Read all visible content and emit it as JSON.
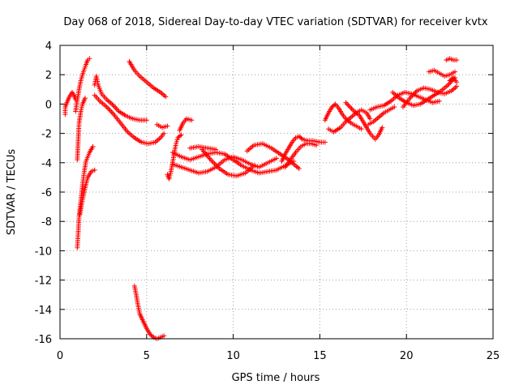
{
  "chart_data": {
    "type": "scatter",
    "title": "Day 068 of 2018, Sidereal Day-to-day VTEC variation (SDTVAR) for receiver kvtx",
    "xlabel": "GPS time / hours",
    "ylabel": "SDTVAR / TECUs",
    "xlim": [
      0,
      25
    ],
    "ylim": [
      -16,
      4
    ],
    "xticks": [
      "0",
      "5",
      "10",
      "15",
      "20",
      "25"
    ],
    "yticks": [
      "4",
      "2",
      "0",
      "-2",
      "-4",
      "-6",
      "-8",
      "-10",
      "-12",
      "-14",
      "-16"
    ],
    "grid": true,
    "marker": "plus",
    "color": "#ff0000",
    "series": [
      {
        "name": "sdtvar",
        "segments": [
          [
            [
              0.3,
              -0.7
            ],
            [
              0.3,
              -0.2
            ],
            [
              0.4,
              0.1
            ],
            [
              0.5,
              0.4
            ],
            [
              0.6,
              0.6
            ],
            [
              0.7,
              0.8
            ],
            [
              0.8,
              0.6
            ],
            [
              0.9,
              0.3
            ]
          ],
          [
            [
              0.9,
              -0.5
            ],
            [
              1.0,
              0.3
            ],
            [
              1.1,
              1.0
            ],
            [
              1.2,
              1.6
            ],
            [
              1.35,
              2.2
            ],
            [
              1.5,
              2.7
            ],
            [
              1.6,
              3.0
            ],
            [
              1.7,
              3.1
            ]
          ],
          [
            [
              1.0,
              -3.8
            ],
            [
              1.05,
              -2.5
            ],
            [
              1.1,
              -1.3
            ],
            [
              1.2,
              -0.5
            ],
            [
              1.3,
              0.0
            ],
            [
              1.45,
              0.4
            ]
          ],
          [
            [
              1.0,
              -9.8
            ],
            [
              1.05,
              -8.8
            ],
            [
              1.1,
              -7.7
            ],
            [
              1.2,
              -6.6
            ],
            [
              1.3,
              -5.5
            ],
            [
              1.4,
              -4.6
            ],
            [
              1.5,
              -3.9
            ],
            [
              1.7,
              -3.3
            ],
            [
              1.9,
              -2.9
            ]
          ],
          [
            [
              1.15,
              -7.5
            ],
            [
              1.3,
              -6.5
            ],
            [
              1.45,
              -5.7
            ],
            [
              1.6,
              -5.0
            ],
            [
              1.8,
              -4.6
            ],
            [
              2.0,
              -4.5
            ]
          ],
          [
            [
              2.0,
              1.3
            ],
            [
              2.1,
              1.9
            ],
            [
              2.2,
              1.3
            ],
            [
              2.4,
              0.7
            ],
            [
              2.7,
              0.3
            ],
            [
              3.0,
              0.0
            ],
            [
              3.4,
              -0.5
            ],
            [
              3.8,
              -0.8
            ],
            [
              4.2,
              -1.0
            ],
            [
              4.6,
              -1.1
            ],
            [
              5.0,
              -1.1
            ]
          ],
          [
            [
              2.0,
              0.6
            ],
            [
              2.3,
              0.2
            ],
            [
              2.7,
              -0.2
            ],
            [
              3.1,
              -0.7
            ],
            [
              3.5,
              -1.3
            ],
            [
              3.9,
              -1.9
            ],
            [
              4.3,
              -2.3
            ],
            [
              4.7,
              -2.6
            ],
            [
              5.1,
              -2.7
            ],
            [
              5.5,
              -2.6
            ],
            [
              5.8,
              -2.3
            ],
            [
              6.0,
              -2.0
            ]
          ],
          [
            [
              4.0,
              2.9
            ],
            [
              4.3,
              2.3
            ],
            [
              4.6,
              1.9
            ],
            [
              5.0,
              1.5
            ],
            [
              5.4,
              1.1
            ],
            [
              5.8,
              0.8
            ],
            [
              6.1,
              0.5
            ]
          ],
          [
            [
              4.3,
              -12.4
            ],
            [
              4.4,
              -13.0
            ],
            [
              4.5,
              -13.7
            ],
            [
              4.6,
              -14.3
            ],
            [
              4.8,
              -14.8
            ],
            [
              5.0,
              -15.3
            ],
            [
              5.2,
              -15.7
            ],
            [
              5.4,
              -15.9
            ],
            [
              5.6,
              -16.0
            ],
            [
              5.8,
              -15.9
            ],
            [
              6.0,
              -15.8
            ]
          ],
          [
            [
              5.6,
              -1.4
            ],
            [
              5.9,
              -1.6
            ],
            [
              6.2,
              -1.5
            ]
          ],
          [
            [
              6.2,
              -4.8
            ],
            [
              6.3,
              -5.1
            ],
            [
              6.4,
              -4.6
            ],
            [
              6.5,
              -4.0
            ],
            [
              6.6,
              -3.3
            ],
            [
              6.7,
              -2.7
            ],
            [
              6.8,
              -2.3
            ],
            [
              7.0,
              -2.1
            ]
          ],
          [
            [
              6.9,
              -1.8
            ],
            [
              7.1,
              -1.3
            ],
            [
              7.3,
              -1.0
            ],
            [
              7.6,
              -1.1
            ]
          ],
          [
            [
              6.5,
              -3.3
            ],
            [
              7.0,
              -3.6
            ],
            [
              7.5,
              -3.8
            ],
            [
              8.0,
              -3.6
            ],
            [
              8.5,
              -3.4
            ],
            [
              9.0,
              -3.3
            ],
            [
              9.5,
              -3.4
            ],
            [
              10.0,
              -3.8
            ],
            [
              10.5,
              -4.2
            ],
            [
              11.0,
              -4.5
            ],
            [
              11.5,
              -4.7
            ],
            [
              12.0,
              -4.6
            ],
            [
              12.5,
              -4.5
            ],
            [
              13.0,
              -4.2
            ],
            [
              13.5,
              -3.9
            ]
          ],
          [
            [
              6.5,
              -4.1
            ],
            [
              7.0,
              -4.3
            ],
            [
              7.5,
              -4.5
            ],
            [
              8.0,
              -4.7
            ],
            [
              8.5,
              -4.6
            ],
            [
              9.0,
              -4.3
            ],
            [
              9.5,
              -3.8
            ],
            [
              10.0,
              -3.6
            ],
            [
              10.5,
              -3.8
            ],
            [
              11.0,
              -4.1
            ],
            [
              11.5,
              -4.3
            ],
            [
              12.0,
              -4.0
            ],
            [
              12.5,
              -3.7
            ]
          ],
          [
            [
              8.2,
              -3.1
            ],
            [
              8.7,
              -3.8
            ],
            [
              9.2,
              -4.4
            ],
            [
              9.7,
              -4.8
            ],
            [
              10.2,
              -4.9
            ],
            [
              10.7,
              -4.7
            ],
            [
              11.2,
              -4.2
            ]
          ],
          [
            [
              10.8,
              -3.2
            ],
            [
              11.2,
              -2.8
            ],
            [
              11.7,
              -2.7
            ],
            [
              12.2,
              -3.0
            ],
            [
              12.7,
              -3.4
            ],
            [
              13.2,
              -3.8
            ],
            [
              13.5,
              -4.1
            ],
            [
              13.8,
              -4.4
            ]
          ],
          [
            [
              7.5,
              -3.0
            ],
            [
              8.0,
              -2.9
            ],
            [
              8.5,
              -3.0
            ],
            [
              9.0,
              -3.1
            ]
          ],
          [
            [
              12.8,
              -3.9
            ],
            [
              13.0,
              -3.4
            ],
            [
              13.2,
              -3.0
            ],
            [
              13.4,
              -2.6
            ],
            [
              13.6,
              -2.3
            ],
            [
              13.8,
              -2.2
            ],
            [
              14.0,
              -2.4
            ],
            [
              14.3,
              -2.5
            ],
            [
              14.6,
              -2.5
            ],
            [
              15.0,
              -2.6
            ],
            [
              15.3,
              -2.6
            ]
          ],
          [
            [
              13.0,
              -4.3
            ],
            [
              13.3,
              -3.8
            ],
            [
              13.6,
              -3.3
            ],
            [
              13.9,
              -2.9
            ],
            [
              14.2,
              -2.7
            ],
            [
              14.5,
              -2.7
            ],
            [
              14.8,
              -2.8
            ]
          ],
          [
            [
              15.3,
              -1.1
            ],
            [
              15.5,
              -0.6
            ],
            [
              15.7,
              -0.2
            ],
            [
              15.9,
              0.0
            ],
            [
              16.1,
              -0.3
            ],
            [
              16.3,
              -0.7
            ],
            [
              16.5,
              -1.0
            ],
            [
              16.8,
              -1.3
            ],
            [
              17.1,
              -1.5
            ],
            [
              17.4,
              -1.7
            ]
          ],
          [
            [
              15.5,
              -1.7
            ],
            [
              15.8,
              -1.9
            ],
            [
              16.2,
              -1.6
            ],
            [
              16.5,
              -1.2
            ],
            [
              16.8,
              -0.9
            ],
            [
              17.1,
              -0.6
            ],
            [
              17.4,
              -0.4
            ],
            [
              17.7,
              -0.6
            ],
            [
              17.9,
              -1.0
            ]
          ],
          [
            [
              16.5,
              0.1
            ],
            [
              16.9,
              -0.4
            ],
            [
              17.3,
              -0.8
            ],
            [
              17.6,
              -1.4
            ],
            [
              17.9,
              -2.0
            ],
            [
              18.2,
              -2.4
            ],
            [
              18.4,
              -2.1
            ],
            [
              18.6,
              -1.6
            ]
          ],
          [
            [
              17.8,
              -1.4
            ],
            [
              18.1,
              -1.2
            ],
            [
              18.4,
              -0.9
            ],
            [
              18.7,
              -0.6
            ],
            [
              19.0,
              -0.4
            ],
            [
              19.3,
              -0.2
            ]
          ],
          [
            [
              17.9,
              -0.4
            ],
            [
              18.3,
              -0.2
            ],
            [
              18.7,
              -0.1
            ],
            [
              19.1,
              0.2
            ],
            [
              19.5,
              0.6
            ],
            [
              19.9,
              0.8
            ],
            [
              20.3,
              0.7
            ],
            [
              20.7,
              0.5
            ],
            [
              21.1,
              0.3
            ],
            [
              21.5,
              0.1
            ],
            [
              21.9,
              0.2
            ]
          ],
          [
            [
              19.2,
              0.8
            ],
            [
              19.6,
              0.4
            ],
            [
              20.0,
              0.1
            ],
            [
              20.4,
              -0.1
            ],
            [
              20.8,
              0.0
            ],
            [
              21.2,
              0.3
            ],
            [
              21.6,
              0.6
            ],
            [
              22.0,
              0.9
            ],
            [
              22.4,
              1.3
            ],
            [
              22.8,
              1.8
            ]
          ],
          [
            [
              19.8,
              -0.2
            ],
            [
              20.2,
              0.4
            ],
            [
              20.6,
              0.9
            ],
            [
              21.0,
              1.1
            ],
            [
              21.4,
              1.0
            ],
            [
              21.8,
              0.8
            ],
            [
              22.2,
              0.7
            ],
            [
              22.6,
              0.9
            ],
            [
              22.9,
              1.2
            ]
          ],
          [
            [
              21.3,
              2.2
            ],
            [
              21.6,
              2.3
            ],
            [
              21.9,
              2.1
            ],
            [
              22.2,
              1.9
            ],
            [
              22.5,
              2.0
            ],
            [
              22.8,
              2.2
            ]
          ],
          [
            [
              22.3,
              3.0
            ],
            [
              22.5,
              3.1
            ],
            [
              22.7,
              3.0
            ],
            [
              22.9,
              3.0
            ]
          ],
          [
            [
              22.5,
              1.6
            ],
            [
              22.7,
              1.8
            ],
            [
              22.9,
              1.5
            ]
          ]
        ]
      }
    ]
  }
}
